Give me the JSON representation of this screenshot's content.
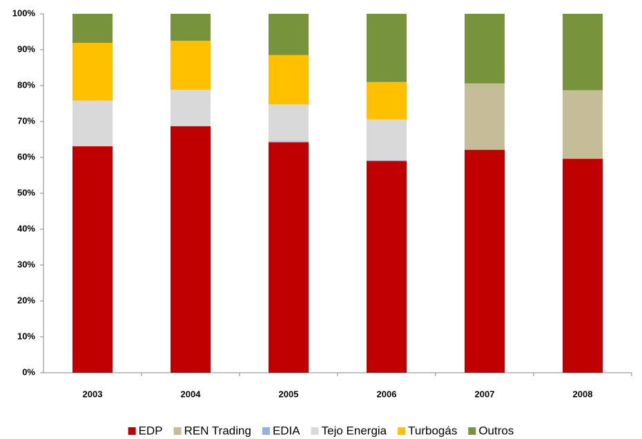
{
  "chart_data": {
    "type": "stacked-bar",
    "categories": [
      "2003",
      "2004",
      "2005",
      "2006",
      "2007",
      "2008"
    ],
    "series": [
      {
        "name": "EDP",
        "color": "#c00000",
        "values": [
          63.1,
          68.7,
          64.2,
          59.0,
          62.1,
          59.6
        ]
      },
      {
        "name": "REN Trading",
        "color": "#c4bd97",
        "values": [
          0,
          0,
          0,
          0,
          18.5,
          19.1
        ]
      },
      {
        "name": "EDIA",
        "color": "#95b3d7",
        "values": [
          0,
          0,
          0.3,
          0.2,
          0,
          0
        ]
      },
      {
        "name": "Tejo Energia",
        "color": "#d9d9d9",
        "values": [
          12.7,
          10.1,
          10.3,
          11.4,
          0,
          0
        ]
      },
      {
        "name": "Turbogás",
        "color": "#ffc000",
        "values": [
          16.1,
          13.7,
          13.7,
          10.4,
          0,
          0
        ]
      },
      {
        "name": "Outros",
        "color": "#77933c",
        "values": [
          8.1,
          7.5,
          11.5,
          19.0,
          19.4,
          21.3
        ]
      }
    ],
    "ylim": [
      0,
      100
    ],
    "yticks": [
      {
        "value": 0,
        "label": "0%"
      },
      {
        "value": 10,
        "label": "10%"
      },
      {
        "value": 20,
        "label": "20%"
      },
      {
        "value": 30,
        "label": "30%"
      },
      {
        "value": 40,
        "label": "40%"
      },
      {
        "value": 50,
        "label": "50%"
      },
      {
        "value": 60,
        "label": "60%"
      },
      {
        "value": 70,
        "label": "70%"
      },
      {
        "value": 80,
        "label": "80%"
      },
      {
        "value": 90,
        "label": "90%"
      },
      {
        "value": 100,
        "label": "100%"
      }
    ],
    "grid": false,
    "legend": "bottom"
  }
}
